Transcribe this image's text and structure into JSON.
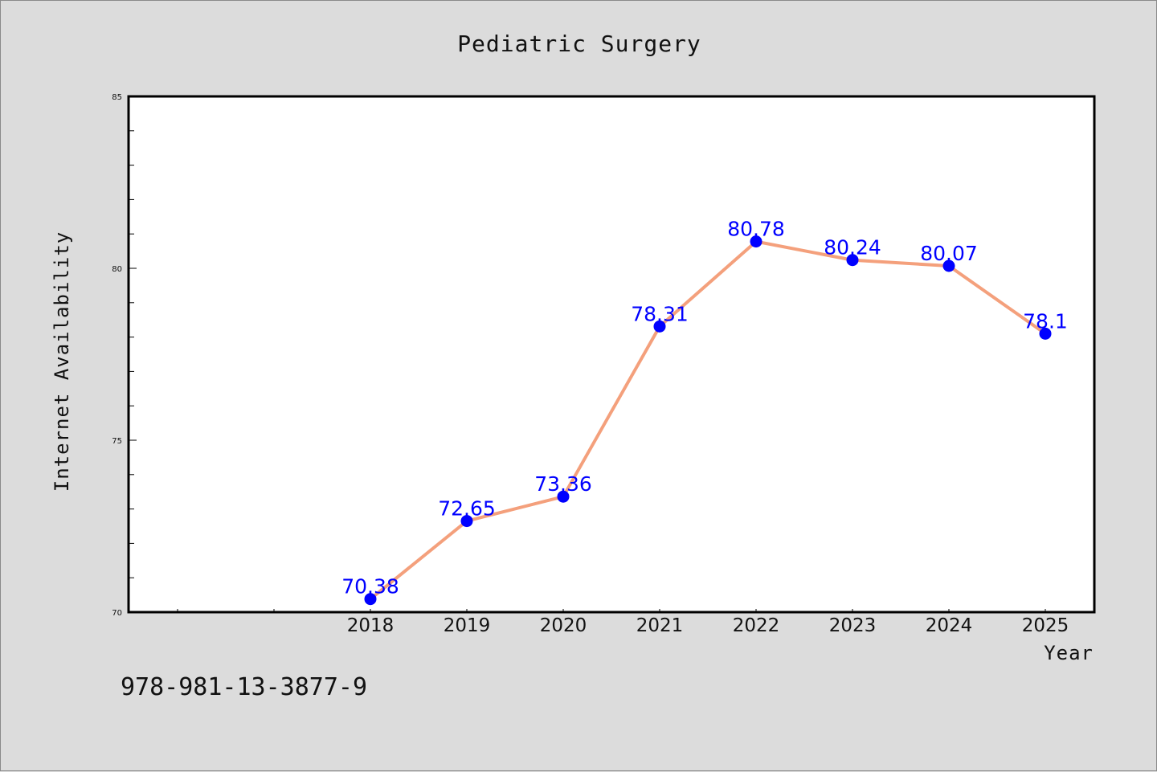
{
  "chart_data": {
    "type": "line",
    "title": "Pediatric Surgery",
    "xlabel": "Year",
    "ylabel": "Internet Availability",
    "x": [
      "2018",
      "2019",
      "2020",
      "2021",
      "2022",
      "2023",
      "2024",
      "2025"
    ],
    "series": [
      {
        "values": [
          70.38,
          72.65,
          73.36,
          78.31,
          80.78,
          80.24,
          80.07,
          78.1
        ],
        "data_labels": [
          "70.38",
          "72.65",
          "73.36",
          "78.31",
          "80.78",
          "80.24",
          "80.07",
          "78.1"
        ]
      }
    ],
    "ylim": [
      70,
      85
    ],
    "yticks": [
      "70",
      "75",
      "80",
      "85"
    ],
    "grid": false,
    "line_color": "#f4a07c",
    "marker_color": "#0000ff",
    "label_color": "#0000ff"
  },
  "footer": {
    "isbn": "978-981-13-3877-9"
  }
}
